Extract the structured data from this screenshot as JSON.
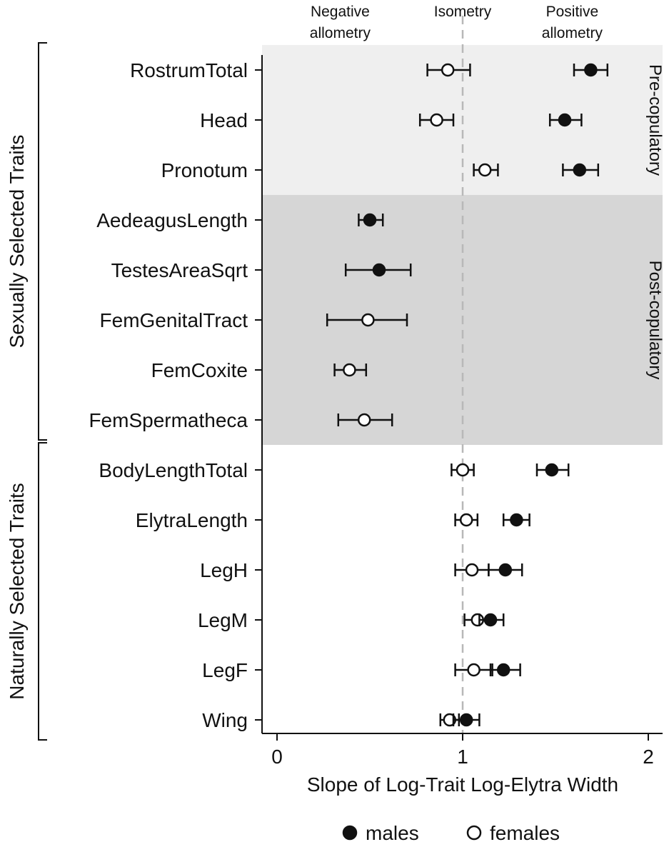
{
  "chart_data": {
    "type": "scatter",
    "subtype": "dot-and-whisker",
    "xlabel": "Slope of Log-Trait Log-Elytra Width",
    "xlim": [
      -0.1,
      2.08
    ],
    "x_ticks": [
      0,
      1,
      2
    ],
    "x_tick_labels": [
      "0",
      "1",
      "2"
    ],
    "reference_line": {
      "x": 1,
      "style": "dashed",
      "color": "#b8b8b8"
    },
    "top_annotations": [
      {
        "id": "neg",
        "lines": [
          "Negative",
          "allometry"
        ],
        "x": 0.34
      },
      {
        "id": "iso",
        "lines": [
          "Isometry"
        ],
        "x": 1.0
      },
      {
        "id": "pos",
        "lines": [
          "Positive",
          "allometry"
        ],
        "x": 1.59
      }
    ],
    "groups": [
      {
        "label": "Sexually Selected Traits",
        "from": "RostrumTotal",
        "to": "FemSpermatheca"
      },
      {
        "label": "Naturally Selected Traits",
        "from": "BodyLengthTotal",
        "to": "Wing"
      }
    ],
    "bands": [
      {
        "label": "Pre-copulatory",
        "from": "RostrumTotal",
        "to": "Pronotum",
        "color": "#efefef"
      },
      {
        "label": "Post-copulatory",
        "from": "AedeagusLength",
        "to": "FemSpermatheca",
        "color": "#d6d6d6"
      }
    ],
    "categories": [
      "RostrumTotal",
      "Head",
      "Pronotum",
      "AedeagusLength",
      "TestesAreaSqrt",
      "FemGenitalTract",
      "FemCoxite",
      "FemSpermatheca",
      "BodyLengthTotal",
      "ElytraLength",
      "LegH",
      "LegM",
      "LegF",
      "Wing"
    ],
    "series": [
      {
        "name": "males",
        "marker": "filled-circle",
        "points": [
          {
            "category": "RostrumTotal",
            "estimate": 1.69,
            "low": 1.6,
            "high": 1.78
          },
          {
            "category": "Head",
            "estimate": 1.55,
            "low": 1.47,
            "high": 1.64
          },
          {
            "category": "Pronotum",
            "estimate": 1.63,
            "low": 1.54,
            "high": 1.73
          },
          {
            "category": "AedeagusLength",
            "estimate": 0.5,
            "low": 0.44,
            "high": 0.57
          },
          {
            "category": "TestesAreaSqrt",
            "estimate": 0.55,
            "low": 0.37,
            "high": 0.72
          },
          {
            "category": "BodyLengthTotal",
            "estimate": 1.48,
            "low": 1.4,
            "high": 1.57
          },
          {
            "category": "ElytraLength",
            "estimate": 1.29,
            "low": 1.22,
            "high": 1.36
          },
          {
            "category": "LegH",
            "estimate": 1.23,
            "low": 1.14,
            "high": 1.32
          },
          {
            "category": "LegM",
            "estimate": 1.15,
            "low": 1.09,
            "high": 1.22
          },
          {
            "category": "LegF",
            "estimate": 1.22,
            "low": 1.15,
            "high": 1.31
          },
          {
            "category": "Wing",
            "estimate": 1.02,
            "low": 0.95,
            "high": 1.09
          }
        ]
      },
      {
        "name": "females",
        "marker": "open-circle",
        "points": [
          {
            "category": "RostrumTotal",
            "estimate": 0.92,
            "low": 0.81,
            "high": 1.04
          },
          {
            "category": "Head",
            "estimate": 0.86,
            "low": 0.77,
            "high": 0.95
          },
          {
            "category": "Pronotum",
            "estimate": 1.12,
            "low": 1.06,
            "high": 1.19
          },
          {
            "category": "FemGenitalTract",
            "estimate": 0.49,
            "low": 0.27,
            "high": 0.7
          },
          {
            "category": "FemCoxite",
            "estimate": 0.39,
            "low": 0.31,
            "high": 0.48
          },
          {
            "category": "FemSpermatheca",
            "estimate": 0.47,
            "low": 0.33,
            "high": 0.62
          },
          {
            "category": "BodyLengthTotal",
            "estimate": 1.0,
            "low": 0.94,
            "high": 1.06
          },
          {
            "category": "ElytraLength",
            "estimate": 1.02,
            "low": 0.96,
            "high": 1.08
          },
          {
            "category": "LegH",
            "estimate": 1.05,
            "low": 0.96,
            "high": 1.14
          },
          {
            "category": "LegM",
            "estimate": 1.08,
            "low": 1.01,
            "high": 1.15
          },
          {
            "category": "LegF",
            "estimate": 1.06,
            "low": 0.96,
            "high": 1.16
          },
          {
            "category": "Wing",
            "estimate": 0.93,
            "low": 0.88,
            "high": 0.98
          }
        ]
      }
    ],
    "legend": {
      "placement": "bottom-center",
      "entries": [
        {
          "label": "males",
          "marker": "filled-circle"
        },
        {
          "label": "females",
          "marker": "open-circle"
        }
      ]
    }
  }
}
